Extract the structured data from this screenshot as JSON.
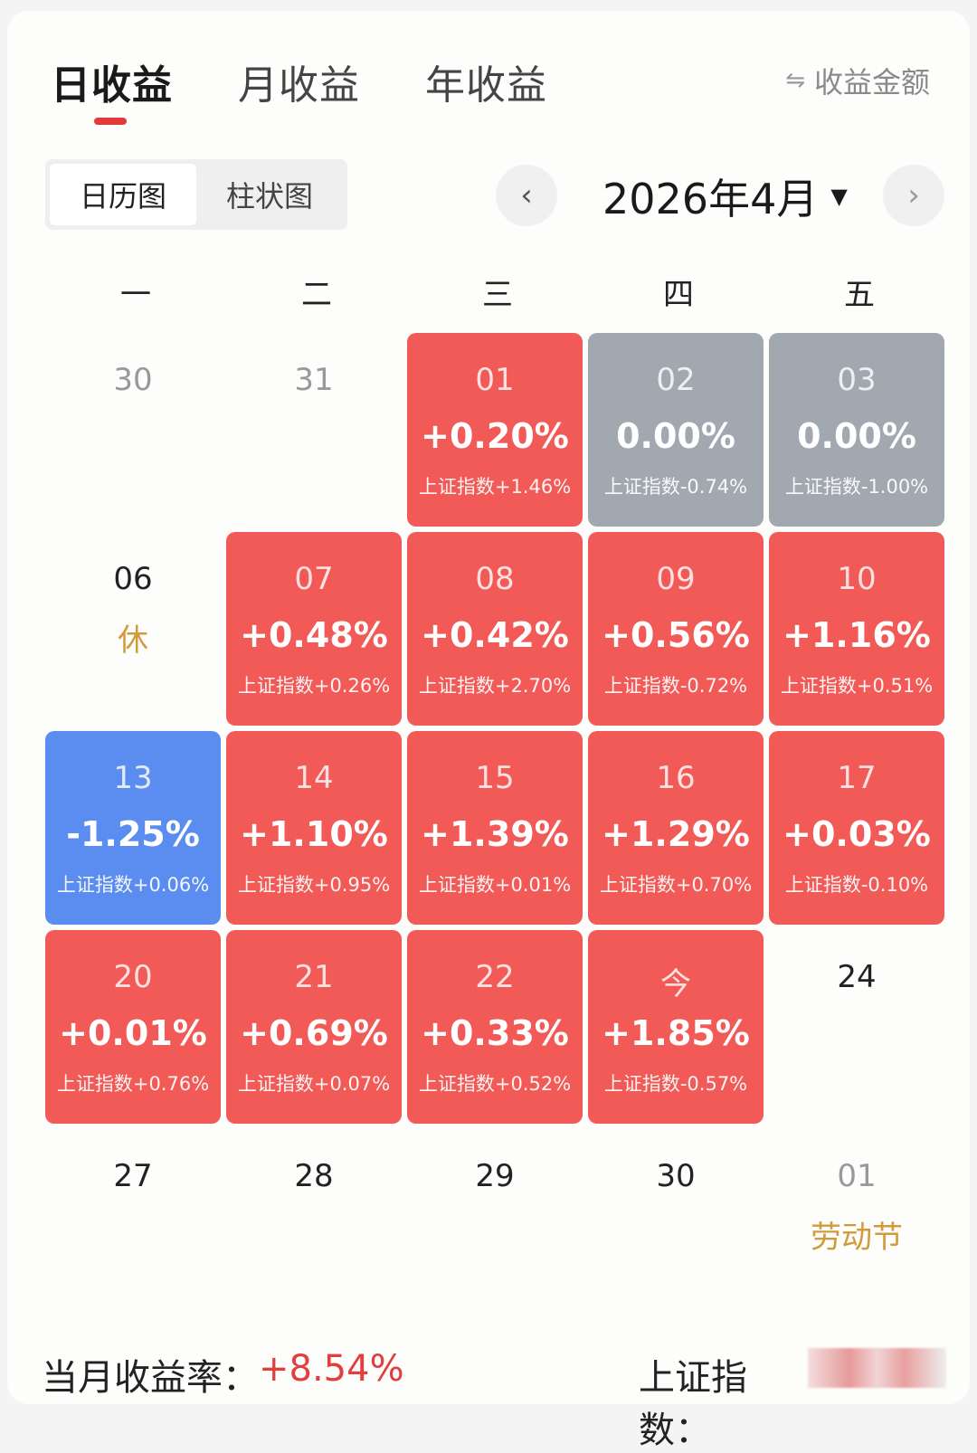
{
  "tabs": [
    {
      "label": "日收益",
      "active": true
    },
    {
      "label": "月收益",
      "active": false
    },
    {
      "label": "年收益",
      "active": false
    }
  ],
  "toggle_amount": {
    "icon": "swap-icon",
    "glyph": "⇋",
    "label": "收益金额"
  },
  "view_switch": [
    {
      "label": "日历图",
      "active": true
    },
    {
      "label": "柱状图",
      "active": false
    }
  ],
  "month_nav": {
    "prev_glyph": "‹",
    "next_glyph": "›",
    "label": "2026年4月",
    "caret": "▼"
  },
  "weekdays": [
    "一",
    "二",
    "三",
    "四",
    "五"
  ],
  "calendar": [
    {
      "day": "30",
      "type": "plain",
      "muted": true
    },
    {
      "day": "31",
      "type": "plain",
      "muted": true
    },
    {
      "day": "01",
      "type": "up",
      "rate": "+0.20%",
      "index": "上证指数+1.46%"
    },
    {
      "day": "02",
      "type": "flat",
      "rate": "0.00%",
      "index": "上证指数-0.74%"
    },
    {
      "day": "03",
      "type": "flat",
      "rate": "0.00%",
      "index": "上证指数-1.00%"
    },
    {
      "day": "06",
      "type": "plain",
      "note": "休"
    },
    {
      "day": "07",
      "type": "up",
      "rate": "+0.48%",
      "index": "上证指数+0.26%"
    },
    {
      "day": "08",
      "type": "up",
      "rate": "+0.42%",
      "index": "上证指数+2.70%"
    },
    {
      "day": "09",
      "type": "up",
      "rate": "+0.56%",
      "index": "上证指数-0.72%"
    },
    {
      "day": "10",
      "type": "up",
      "rate": "+1.16%",
      "index": "上证指数+0.51%"
    },
    {
      "day": "13",
      "type": "down",
      "rate": "-1.25%",
      "index": "上证指数+0.06%"
    },
    {
      "day": "14",
      "type": "up",
      "rate": "+1.10%",
      "index": "上证指数+0.95%"
    },
    {
      "day": "15",
      "type": "up",
      "rate": "+1.39%",
      "index": "上证指数+0.01%"
    },
    {
      "day": "16",
      "type": "up",
      "rate": "+1.29%",
      "index": "上证指数+0.70%"
    },
    {
      "day": "17",
      "type": "up",
      "rate": "+0.03%",
      "index": "上证指数-0.10%"
    },
    {
      "day": "20",
      "type": "up",
      "rate": "+0.01%",
      "index": "上证指数+0.76%"
    },
    {
      "day": "21",
      "type": "up",
      "rate": "+0.69%",
      "index": "上证指数+0.07%"
    },
    {
      "day": "22",
      "type": "up",
      "rate": "+0.33%",
      "index": "上证指数+0.52%"
    },
    {
      "day": "今",
      "type": "up",
      "rate": "+1.85%",
      "index": "上证指数-0.57%"
    },
    {
      "day": "24",
      "type": "plain"
    },
    {
      "day": "27",
      "type": "plain"
    },
    {
      "day": "28",
      "type": "plain"
    },
    {
      "day": "29",
      "type": "plain"
    },
    {
      "day": "30",
      "type": "plain"
    },
    {
      "day": "01",
      "type": "plain",
      "muted": true,
      "note": "劳动节"
    }
  ],
  "footer": {
    "monthly_label": "当月收益率：",
    "monthly_value": "+8.54%",
    "index_label": "上证指数："
  },
  "colors": {
    "up": "#f25a57",
    "down": "#5b8cef",
    "flat": "#a2a8b0",
    "accent": "#e23b3b",
    "holiday": "#d39a3c"
  }
}
